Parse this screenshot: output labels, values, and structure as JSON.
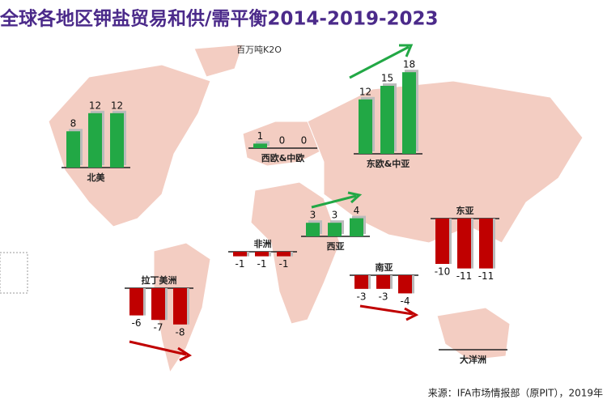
{
  "title": "全球各地区钾盐贸易和供/需平衡2014-2019-2023",
  "unit": "百万吨K2O",
  "source": "来源：IFA市场情报部（原PIT），2019年",
  "chart_data": [
    {
      "type": "bar",
      "title": "北美",
      "values": [
        8,
        12,
        12
      ],
      "color": "#22a845"
    },
    {
      "type": "bar",
      "title": "西欧&中欧",
      "values": [
        1,
        0,
        0
      ],
      "color": "#22a845"
    },
    {
      "type": "bar",
      "title": "东欧&中亚",
      "values": [
        12,
        15,
        18
      ],
      "color": "#22a845"
    },
    {
      "type": "bar",
      "title": "西亚",
      "values": [
        3,
        3,
        4
      ],
      "color": "#22a845"
    },
    {
      "type": "bar",
      "title": "非洲",
      "values": [
        -1,
        -1,
        -1
      ],
      "color": "#c00000"
    },
    {
      "type": "bar",
      "title": "东亚",
      "values": [
        -10,
        -11,
        -11
      ],
      "color": "#c00000"
    },
    {
      "type": "bar",
      "title": "南亚",
      "values": [
        -3,
        -3,
        -4
      ],
      "color": "#c00000"
    },
    {
      "type": "bar",
      "title": "拉丁美洲",
      "values": [
        -6,
        -7,
        -8
      ],
      "color": "#c00000"
    },
    {
      "type": "bar",
      "title": "大洋洲"
    }
  ]
}
